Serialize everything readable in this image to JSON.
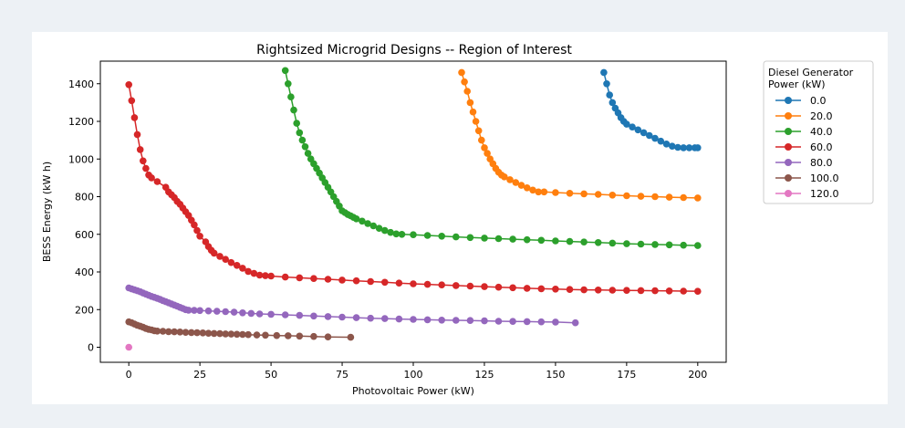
{
  "chart_data": {
    "type": "line",
    "title": "Rightsized Microgrid Designs -- Region of Interest",
    "xlabel": "Photovoltaic Power (kW)",
    "ylabel": "BESS Energy (kW h)",
    "xlim": [
      -10,
      210
    ],
    "ylim": [
      -80,
      1520
    ],
    "x_ticks": [
      0,
      25,
      50,
      75,
      100,
      125,
      150,
      175,
      200
    ],
    "y_ticks": [
      0,
      200,
      400,
      600,
      800,
      1000,
      1200,
      1400
    ],
    "grid": false,
    "legend": {
      "title_lines": [
        "Diesel Generator",
        "Power (kW)"
      ],
      "placement": "outside-right"
    },
    "series": [
      {
        "name": "0.0",
        "color": "#1f77b4",
        "x": [
          167,
          168,
          169,
          170,
          171,
          172,
          173,
          174,
          175,
          177,
          179,
          181,
          183,
          185,
          187,
          189,
          191,
          193,
          195,
          197,
          199,
          200
        ],
        "y": [
          1460,
          1400,
          1340,
          1300,
          1270,
          1245,
          1220,
          1200,
          1185,
          1170,
          1155,
          1140,
          1125,
          1110,
          1095,
          1080,
          1068,
          1062,
          1060,
          1060,
          1060,
          1060
        ]
      },
      {
        "name": "20.0",
        "color": "#ff7f0e",
        "x": [
          117,
          118,
          119,
          120,
          121,
          122,
          123,
          124,
          125,
          126,
          127,
          128,
          129,
          130,
          131,
          132,
          134,
          136,
          138,
          140,
          142,
          144,
          146,
          150,
          155,
          160,
          165,
          170,
          175,
          180,
          185,
          190,
          195,
          200
        ],
        "y": [
          1460,
          1410,
          1360,
          1300,
          1250,
          1200,
          1150,
          1100,
          1060,
          1030,
          1000,
          975,
          950,
          930,
          915,
          905,
          890,
          875,
          860,
          847,
          835,
          825,
          825,
          822,
          818,
          815,
          812,
          808,
          805,
          802,
          800,
          797,
          795,
          793
        ]
      },
      {
        "name": "40.0",
        "color": "#2ca02c",
        "x": [
          55,
          56,
          57,
          58,
          59,
          60,
          61,
          62,
          63,
          64,
          65,
          66,
          67,
          68,
          69,
          70,
          71,
          72,
          73,
          74,
          75,
          76,
          77,
          78,
          79,
          80,
          82,
          84,
          86,
          88,
          90,
          92,
          94,
          96,
          100,
          105,
          110,
          115,
          120,
          125,
          130,
          135,
          140,
          145,
          150,
          155,
          160,
          165,
          170,
          175,
          180,
          185,
          190,
          195,
          200
        ],
        "y": [
          1470,
          1400,
          1330,
          1260,
          1190,
          1140,
          1100,
          1065,
          1030,
          1000,
          975,
          950,
          925,
          900,
          875,
          850,
          825,
          800,
          775,
          750,
          725,
          715,
          705,
          698,
          690,
          682,
          670,
          657,
          645,
          632,
          620,
          610,
          602,
          600,
          598,
          594,
          590,
          586,
          583,
          580,
          577,
          574,
          571,
          568,
          565,
          562,
          559,
          556,
          553,
          550,
          548,
          546,
          544,
          542,
          540
        ]
      },
      {
        "name": "60.0",
        "color": "#d62728",
        "x": [
          0,
          1,
          2,
          3,
          4,
          5,
          6,
          7,
          8,
          10,
          13,
          14,
          15,
          16,
          17,
          18,
          19,
          20,
          21,
          22,
          23,
          24,
          25,
          27,
          28,
          29,
          30,
          32,
          34,
          36,
          38,
          40,
          42,
          44,
          46,
          48,
          50,
          55,
          60,
          65,
          70,
          75,
          80,
          85,
          90,
          95,
          100,
          105,
          110,
          115,
          120,
          125,
          130,
          135,
          140,
          145,
          150,
          155,
          160,
          165,
          170,
          175,
          180,
          185,
          190,
          195,
          200
        ],
        "y": [
          1395,
          1310,
          1220,
          1130,
          1050,
          990,
          950,
          915,
          900,
          880,
          850,
          825,
          810,
          795,
          775,
          760,
          740,
          720,
          700,
          675,
          650,
          620,
          590,
          560,
          535,
          515,
          500,
          483,
          467,
          450,
          435,
          420,
          403,
          392,
          383,
          380,
          378,
          373,
          369,
          365,
          361,
          357,
          353,
          349,
          345,
          341,
          337,
          334,
          331,
          328,
          325,
          322,
          319,
          316,
          313,
          311,
          309,
          307,
          305,
          304,
          303,
          302,
          301,
          300,
          299,
          298,
          297
        ]
      },
      {
        "name": "80.0",
        "color": "#9467bd",
        "x": [
          0,
          1,
          2,
          3,
          4,
          5,
          6,
          7,
          8,
          9,
          10,
          11,
          12,
          13,
          14,
          15,
          16,
          17,
          18,
          19,
          20,
          21,
          23,
          25,
          28,
          31,
          34,
          37,
          40,
          43,
          46,
          50,
          55,
          60,
          65,
          70,
          75,
          80,
          85,
          90,
          95,
          100,
          105,
          110,
          115,
          120,
          125,
          130,
          135,
          140,
          145,
          150,
          157
        ],
        "y": [
          315,
          310,
          305,
          300,
          295,
          288,
          282,
          276,
          270,
          265,
          260,
          254,
          248,
          242,
          236,
          230,
          224,
          218,
          212,
          206,
          200,
          197,
          196,
          195,
          193,
          191,
          189,
          186,
          183,
          180,
          177,
          175,
          172,
          169,
          166,
          163,
          160,
          157,
          154,
          152,
          150,
          148,
          146,
          144,
          143,
          142,
          140,
          138,
          137,
          136,
          135,
          134,
          130
        ]
      },
      {
        "name": "100.0",
        "color": "#8c564b",
        "x": [
          0,
          1,
          2,
          3,
          4,
          5,
          6,
          7,
          8,
          9,
          10,
          12,
          14,
          16,
          18,
          20,
          22,
          24,
          26,
          28,
          30,
          32,
          34,
          36,
          38,
          40,
          42,
          45,
          48,
          52,
          56,
          60,
          65,
          70,
          78
        ],
        "y": [
          135,
          130,
          123,
          117,
          112,
          106,
          100,
          95,
          92,
          88,
          86,
          85,
          83,
          82,
          81,
          79,
          78,
          77,
          76,
          74,
          73,
          72,
          71,
          70,
          69,
          68,
          67,
          65,
          64,
          62,
          61,
          59,
          57,
          55,
          53
        ]
      },
      {
        "name": "120.0",
        "color": "#e377c2",
        "x": [
          0
        ],
        "y": [
          0
        ]
      }
    ]
  }
}
